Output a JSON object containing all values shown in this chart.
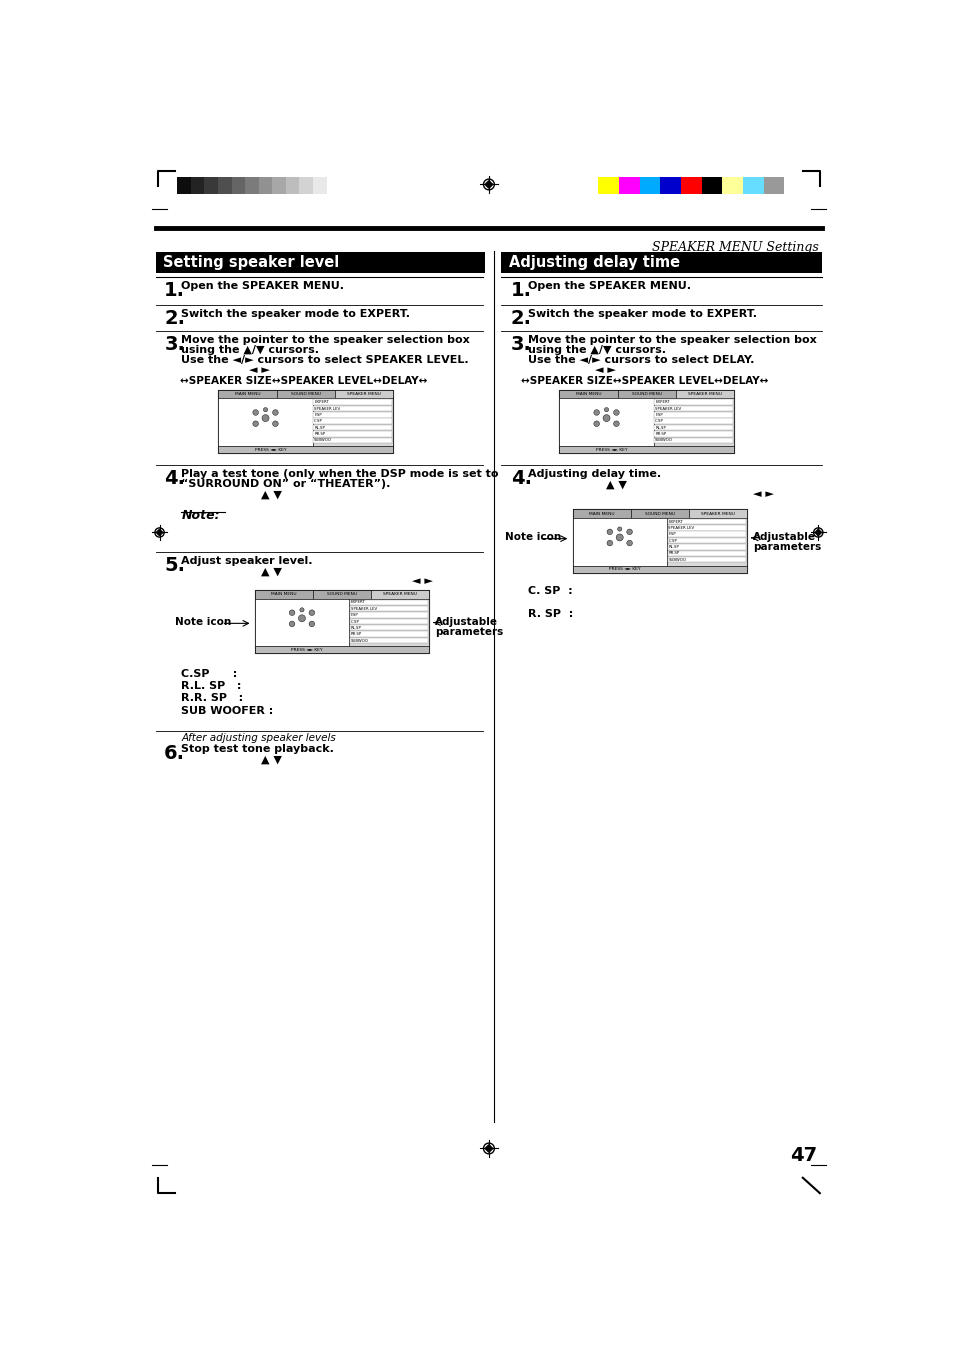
{
  "page_bg": "#ffffff",
  "title_left": "Setting speaker level",
  "title_right": "Adjusting delay time",
  "italic_header": "SPEAKER MENU Settings",
  "page_number": "47",
  "left_flow": "↔SPEAKER SIZE↔SPEAKER LEVEL↔DELAY↔",
  "right_flow": "↔SPEAKER SIZE↔SPEAKER LEVEL↔DELAY↔",
  "left_params": [
    "C.SP      :",
    "R.L. SP   :",
    "R.R. SP   :",
    "SUB WOOFER :"
  ],
  "right_params": [
    "C. SP  :",
    "R. SP  :"
  ],
  "left_step6_header": "After adjusting speaker levels",
  "gray_colors": [
    "#111111",
    "#222222",
    "#333333",
    "#444444",
    "#555555",
    "#666666",
    "#777777",
    "#888888",
    "#999999",
    "#aaaaaa",
    "#bbbbbb",
    "#cccccc",
    "#dddddd",
    "#eeeeee",
    "#ffffff"
  ],
  "color_bars": [
    "#ffff00",
    "#ff00ff",
    "#00aaff",
    "#0000cc",
    "#ff0000",
    "#000000",
    "#ffff99",
    "#66ddff",
    "#999999"
  ]
}
